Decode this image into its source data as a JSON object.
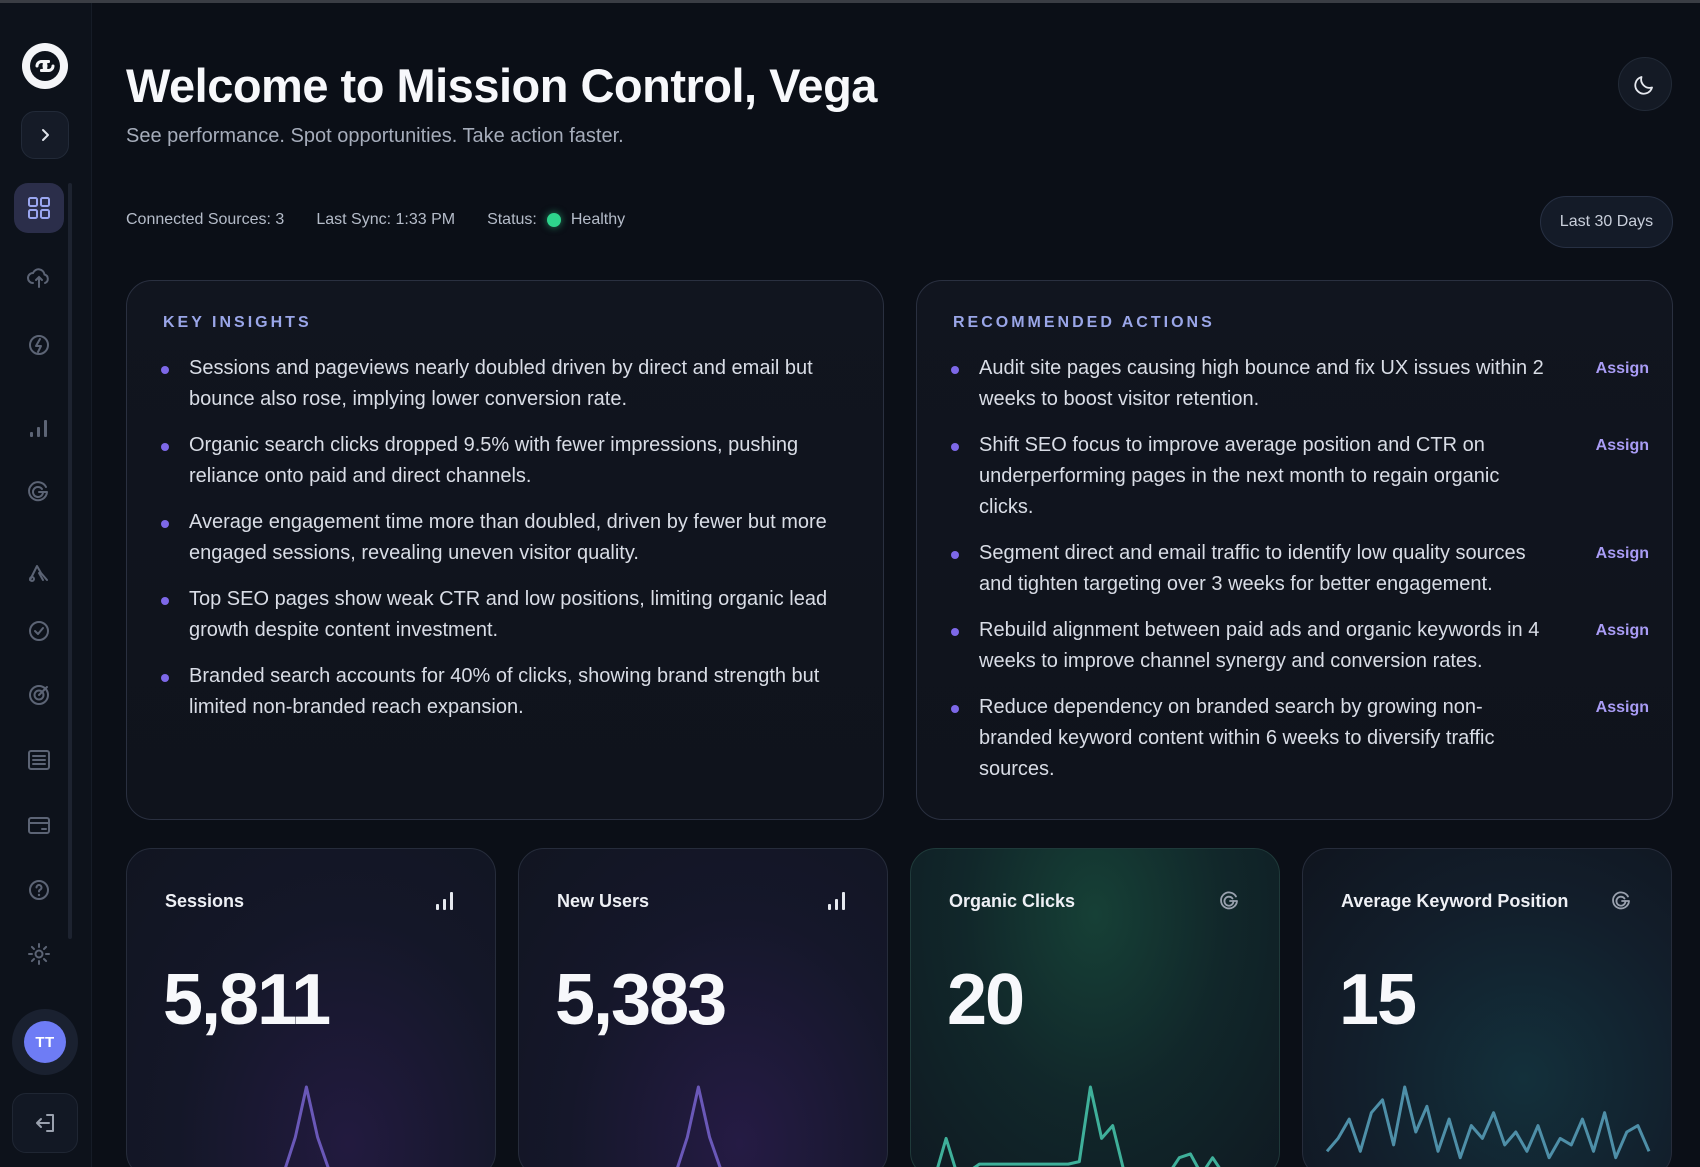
{
  "header": {
    "title": "Welcome to Mission Control, Vega",
    "subtitle": "See performance. Spot opportunities. Take action faster."
  },
  "status": {
    "connected": "Connected Sources: 3",
    "last_sync": "Last Sync: 1:33 PM",
    "status_label": "Status:",
    "status_value": "Healthy",
    "status_color": "#2ed48c"
  },
  "range_button": "Last 30 Days",
  "sidebar": {
    "user_initials": "TT",
    "items": [
      "dashboard-icon",
      "cloud-upload-icon",
      "integrations-icon",
      "analytics-icon",
      "google-icon",
      "ads-icon",
      "check-circle-icon",
      "target-icon",
      "list-icon",
      "billing-icon",
      "help-icon",
      "settings-icon"
    ]
  },
  "insights": {
    "title": "KEY INSIGHTS",
    "items": [
      "Sessions and pageviews nearly doubled driven by direct and email but bounce also rose, implying lower conversion rate.",
      "Organic search clicks dropped 9.5% with fewer impressions, pushing reliance onto paid and direct channels.",
      "Average engagement time more than doubled, driven by fewer but more engaged sessions, revealing uneven visitor quality.",
      "Top SEO pages show weak CTR and low positions, limiting organic lead growth despite content investment.",
      "Branded search accounts for 40% of clicks, showing brand strength but limited non-branded reach expansion."
    ]
  },
  "actions": {
    "title": "RECOMMENDED ACTIONS",
    "assign_label": "Assign",
    "items": [
      "Audit site pages causing high bounce and fix UX issues within 2 weeks to boost visitor retention.",
      "Shift SEO focus to improve average position and CTR on underperforming pages in the next month to regain organic clicks.",
      "Segment direct and email traffic to identify low quality sources and tighten targeting over 3 weeks for better engagement.",
      "Rebuild alignment between paid ads and organic keywords in 4 weeks to improve channel synergy and conversion rates.",
      "Reduce dependency on branded search by growing non-branded keyword content within 6 weeks to diversify traffic sources."
    ]
  },
  "metrics": [
    {
      "label": "Sessions",
      "value": "5,811",
      "icon": "bar-chart-icon",
      "color": "#6a58b8",
      "series": [
        2,
        2,
        2,
        2,
        2,
        2,
        2,
        2,
        2,
        2,
        2,
        3,
        4,
        30,
        68,
        30,
        6,
        3,
        2,
        2,
        2,
        2,
        2,
        2,
        2,
        2,
        2,
        2,
        2,
        2
      ]
    },
    {
      "label": "New Users",
      "value": "5,383",
      "icon": "bar-chart-icon",
      "color": "#6a58b8",
      "series": [
        2,
        2,
        2,
        2,
        2,
        2,
        2,
        2,
        2,
        2,
        2,
        3,
        4,
        30,
        68,
        30,
        6,
        3,
        2,
        2,
        2,
        2,
        2,
        2,
        2,
        2,
        2,
        2,
        2,
        2
      ]
    },
    {
      "label": "Organic Clicks",
      "value": "20",
      "icon": "google-icon",
      "color": "#3fb09a",
      "series": [
        0,
        30,
        2,
        4,
        10,
        10,
        10,
        10,
        10,
        10,
        10,
        10,
        10,
        12,
        70,
        30,
        40,
        5,
        2,
        2,
        2,
        2,
        15,
        18,
        2,
        15,
        2,
        2,
        2,
        2
      ]
    },
    {
      "label": "Average Keyword Position",
      "value": "15",
      "icon": "google-icon",
      "color": "#4e8fa8",
      "series": [
        20,
        30,
        45,
        20,
        50,
        60,
        25,
        70,
        35,
        55,
        20,
        45,
        15,
        40,
        30,
        50,
        25,
        35,
        20,
        40,
        15,
        30,
        25,
        45,
        20,
        50,
        15,
        35,
        40,
        20
      ]
    }
  ]
}
